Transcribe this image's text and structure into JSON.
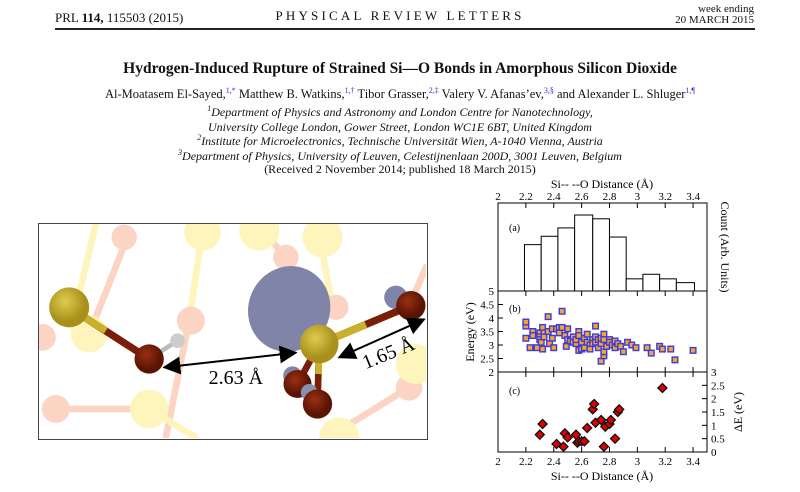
{
  "header": {
    "journal_ref_prefix": "PRL ",
    "volume": "114,",
    "journal_ref_suffix": " 115503 (2015)",
    "journal_name": "PHYSICAL REVIEW LETTERS",
    "week_ending_label": "week ending",
    "week_ending_date": "20 MARCH 2015"
  },
  "article": {
    "title": "Hydrogen-Induced Rupture of Strained Si—O Bonds in Amorphous Silicon Dioxide",
    "authors": [
      {
        "name": "Al-Moatasem El-Sayed,",
        "marks": "1,*"
      },
      {
        "name": " Matthew B. Watkins,",
        "marks": "1,†"
      },
      {
        "name": " Tibor Grasser,",
        "marks": "2,‡"
      },
      {
        "name": " Valery V. Afanas’ev,",
        "marks": "3,§"
      },
      {
        "name": " and Alexander L. Shluger",
        "marks": "1,¶"
      }
    ],
    "affiliations": [
      {
        "num": "1",
        "text": "Department of Physics and Astronomy and London Centre for Nanotechnology,"
      },
      {
        "num": "",
        "text": "University College London, Gower Street, London WC1E 6BT, United Kingdom"
      },
      {
        "num": "2",
        "text": "Institute for Microelectronics, Technische Universität Wien, A-1040 Vienna, Austria"
      },
      {
        "num": "3",
        "text": "Department of Physics, University of Leuven, Celestijnenlaan 200D, 3001 Leuven, Belgium"
      }
    ],
    "received": "(Received 2 November 2014; published 18 March 2015)"
  },
  "figure_left": {
    "label_distance_1": "2.63 Å",
    "label_distance_2": "1.65 Å",
    "colors": {
      "si": "#c9b22a",
      "o": "#7a1e08",
      "h": "#cccccc",
      "spin_density": "#7f84a8",
      "faded_si": "#fbe96a",
      "faded_o": "#f7a27e"
    }
  },
  "chart_data": [
    {
      "panel": "(a)",
      "type": "bar",
      "x_title": "Si-- --O Distance (Å)",
      "x_axis_position": "top",
      "ylabel": "Count (Arb. Units)",
      "xlim": [
        2,
        3.5
      ],
      "xticks": [
        "2",
        "2.2",
        "2.4",
        "2.6",
        "2.8",
        "3",
        "3.2",
        "3.4"
      ],
      "bin_edges": [
        2.19,
        2.31,
        2.43,
        2.55,
        2.68,
        2.8,
        2.92,
        3.04,
        3.16,
        3.28,
        3.41
      ],
      "values": [
        0.61,
        0.72,
        0.83,
        1.0,
        0.95,
        0.71,
        0.16,
        0.22,
        0.16,
        0.11
      ]
    },
    {
      "panel": "(b)",
      "type": "scatter",
      "ylabel": "Energy (eV)",
      "ylim": [
        2,
        5
      ],
      "yticks": [
        "2",
        "2.5",
        "3",
        "3.5",
        "4",
        "4.5",
        "5"
      ],
      "marker_fill": "#f5a623",
      "marker_edge": "#3a3ae8",
      "points": [
        [
          2.2,
          3.7
        ],
        [
          2.2,
          3.85
        ],
        [
          2.2,
          3.25
        ],
        [
          2.23,
          2.9
        ],
        [
          2.25,
          3.5
        ],
        [
          2.25,
          3.35
        ],
        [
          2.28,
          2.9
        ],
        [
          2.3,
          3.45
        ],
        [
          2.3,
          3.3
        ],
        [
          2.3,
          3.2
        ],
        [
          2.31,
          3.1
        ],
        [
          2.32,
          3.65
        ],
        [
          2.32,
          2.85
        ],
        [
          2.33,
          3.45
        ],
        [
          2.33,
          3.3
        ],
        [
          2.36,
          4.05
        ],
        [
          2.36,
          3.5
        ],
        [
          2.37,
          3.05
        ],
        [
          2.39,
          3.6
        ],
        [
          2.39,
          3.25
        ],
        [
          2.4,
          2.9
        ],
        [
          2.42,
          3.6
        ],
        [
          2.44,
          3.65
        ],
        [
          2.44,
          3.45
        ],
        [
          2.46,
          4.25
        ],
        [
          2.46,
          3.65
        ],
        [
          2.48,
          3.35
        ],
        [
          2.49,
          2.95
        ],
        [
          2.5,
          3.6
        ],
        [
          2.5,
          3.2
        ],
        [
          2.52,
          3.15
        ],
        [
          2.54,
          3.3
        ],
        [
          2.54,
          3.1
        ],
        [
          2.56,
          3.05
        ],
        [
          2.56,
          3.2
        ],
        [
          2.58,
          3.5
        ],
        [
          2.58,
          3.35
        ],
        [
          2.58,
          2.8
        ],
        [
          2.6,
          3.1
        ],
        [
          2.6,
          2.85
        ],
        [
          2.62,
          2.9
        ],
        [
          2.62,
          3.25
        ],
        [
          2.64,
          3.4
        ],
        [
          2.64,
          3.1
        ],
        [
          2.66,
          3.0
        ],
        [
          2.66,
          2.85
        ],
        [
          2.68,
          3.2
        ],
        [
          2.68,
          3.05
        ],
        [
          2.7,
          3.7
        ],
        [
          2.7,
          3.3
        ],
        [
          2.7,
          3.1
        ],
        [
          2.72,
          2.9
        ],
        [
          2.72,
          3.2
        ],
        [
          2.74,
          2.4
        ],
        [
          2.74,
          3.05
        ],
        [
          2.74,
          3.25
        ],
        [
          2.76,
          2.6
        ],
        [
          2.76,
          2.75
        ],
        [
          2.76,
          3.4
        ],
        [
          2.76,
          3.2
        ],
        [
          2.78,
          2.95
        ],
        [
          2.8,
          3.2
        ],
        [
          2.8,
          3.1
        ],
        [
          2.82,
          3.0
        ],
        [
          2.84,
          2.9
        ],
        [
          2.84,
          3.15
        ],
        [
          2.86,
          3.05
        ],
        [
          2.88,
          2.95
        ],
        [
          2.9,
          2.75
        ],
        [
          2.93,
          3.1
        ],
        [
          2.96,
          3.0
        ],
        [
          2.99,
          2.9
        ],
        [
          3.07,
          2.9
        ],
        [
          3.1,
          2.7
        ],
        [
          3.16,
          2.95
        ],
        [
          3.18,
          2.85
        ],
        [
          3.24,
          2.85
        ],
        [
          3.27,
          2.45
        ],
        [
          3.4,
          2.8
        ]
      ]
    },
    {
      "panel": "(c)",
      "type": "scatter",
      "x_title": "Si-- --O Distance (Å)",
      "ylabel": "ΔE (eV)",
      "ylim": [
        0,
        3
      ],
      "yticks": [
        "0",
        "0.5",
        "1",
        "1.5",
        "2",
        "2.5",
        "3"
      ],
      "marker_fill": "#e00000",
      "marker_edge": "#111111",
      "marker": "diamond",
      "points": [
        [
          2.3,
          0.65
        ],
        [
          2.32,
          1.05
        ],
        [
          2.42,
          0.3
        ],
        [
          2.47,
          0.2
        ],
        [
          2.48,
          0.7
        ],
        [
          2.5,
          0.55
        ],
        [
          2.56,
          0.65
        ],
        [
          2.57,
          0.35
        ],
        [
          2.58,
          0.4
        ],
        [
          2.6,
          0.4
        ],
        [
          2.62,
          0.4
        ],
        [
          2.64,
          0.9
        ],
        [
          2.68,
          1.6
        ],
        [
          2.69,
          1.8
        ],
        [
          2.7,
          1.1
        ],
        [
          2.74,
          1.2
        ],
        [
          2.76,
          0.2
        ],
        [
          2.77,
          0.95
        ],
        [
          2.8,
          1.05
        ],
        [
          2.81,
          1.2
        ],
        [
          2.84,
          0.5
        ],
        [
          2.86,
          1.5
        ],
        [
          2.87,
          1.6
        ],
        [
          3.18,
          2.4
        ]
      ]
    }
  ]
}
